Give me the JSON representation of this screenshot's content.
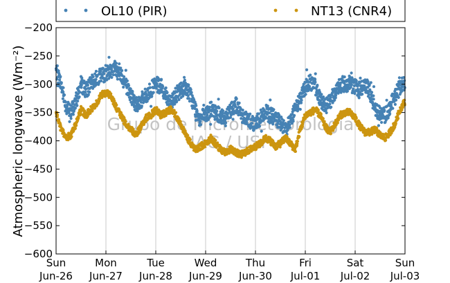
{
  "chart_data": {
    "type": "scatter",
    "ylabel": "Atmospheric longwave (Wm⁻²)",
    "ylim": [
      -600,
      -200
    ],
    "yticks": [
      -200,
      -250,
      -300,
      -350,
      -400,
      -450,
      -500,
      -550,
      -600
    ],
    "x_days": [
      "Sun\nJun-26",
      "Mon\nJun-27",
      "Tue\nJun-28",
      "Wed\nJun-29",
      "Thu\nJun-30",
      "Fri\nJul-01",
      "Sat\nJul-02",
      "Sun\nJul-03"
    ],
    "xlim_days": [
      0,
      7
    ],
    "grid": true,
    "legend_position": "top",
    "watermark": [
      "Grupo de Micrometeorologia",
      "IAG / USP"
    ],
    "series": [
      {
        "name": "OL10 (PIR)",
        "color": "#4682b4",
        "points": [
          [
            0.0,
            -275
          ],
          [
            0.1,
            -300
          ],
          [
            0.2,
            -340
          ],
          [
            0.3,
            -350
          ],
          [
            0.4,
            -330
          ],
          [
            0.5,
            -300
          ],
          [
            0.6,
            -310
          ],
          [
            0.7,
            -300
          ],
          [
            0.8,
            -290
          ],
          [
            0.9,
            -285
          ],
          [
            1.0,
            -280
          ],
          [
            1.1,
            -275
          ],
          [
            1.2,
            -270
          ],
          [
            1.3,
            -280
          ],
          [
            1.4,
            -300
          ],
          [
            1.5,
            -320
          ],
          [
            1.6,
            -335
          ],
          [
            1.7,
            -330
          ],
          [
            1.8,
            -320
          ],
          [
            1.9,
            -310
          ],
          [
            2.0,
            -300
          ],
          [
            2.1,
            -305
          ],
          [
            2.2,
            -320
          ],
          [
            2.3,
            -330
          ],
          [
            2.4,
            -320
          ],
          [
            2.5,
            -310
          ],
          [
            2.6,
            -305
          ],
          [
            2.7,
            -320
          ],
          [
            2.8,
            -345
          ],
          [
            2.9,
            -360
          ],
          [
            3.0,
            -355
          ],
          [
            3.1,
            -345
          ],
          [
            3.2,
            -350
          ],
          [
            3.3,
            -355
          ],
          [
            3.4,
            -360
          ],
          [
            3.5,
            -345
          ],
          [
            3.6,
            -335
          ],
          [
            3.7,
            -350
          ],
          [
            3.8,
            -360
          ],
          [
            3.9,
            -365
          ],
          [
            4.0,
            -370
          ],
          [
            4.1,
            -360
          ],
          [
            4.2,
            -350
          ],
          [
            4.3,
            -355
          ],
          [
            4.4,
            -360
          ],
          [
            4.5,
            -370
          ],
          [
            4.6,
            -380
          ],
          [
            4.7,
            -365
          ],
          [
            4.8,
            -345
          ],
          [
            4.9,
            -325
          ],
          [
            5.0,
            -305
          ],
          [
            5.1,
            -295
          ],
          [
            5.2,
            -305
          ],
          [
            5.3,
            -325
          ],
          [
            5.4,
            -340
          ],
          [
            5.5,
            -330
          ],
          [
            5.6,
            -315
          ],
          [
            5.7,
            -300
          ],
          [
            5.8,
            -300
          ],
          [
            5.9,
            -300
          ],
          [
            6.0,
            -305
          ],
          [
            6.1,
            -310
          ],
          [
            6.2,
            -300
          ],
          [
            6.3,
            -315
          ],
          [
            6.4,
            -340
          ],
          [
            6.5,
            -355
          ],
          [
            6.6,
            -355
          ],
          [
            6.7,
            -340
          ],
          [
            6.8,
            -320
          ],
          [
            6.9,
            -305
          ],
          [
            7.0,
            -295
          ]
        ]
      },
      {
        "name": "NT13 (CNR4)",
        "color": "#cc9510",
        "points": [
          [
            0.0,
            -350
          ],
          [
            0.1,
            -380
          ],
          [
            0.2,
            -395
          ],
          [
            0.3,
            -390
          ],
          [
            0.4,
            -370
          ],
          [
            0.5,
            -345
          ],
          [
            0.6,
            -355
          ],
          [
            0.7,
            -345
          ],
          [
            0.8,
            -335
          ],
          [
            0.9,
            -320
          ],
          [
            1.0,
            -315
          ],
          [
            1.1,
            -320
          ],
          [
            1.2,
            -340
          ],
          [
            1.3,
            -355
          ],
          [
            1.4,
            -370
          ],
          [
            1.5,
            -380
          ],
          [
            1.6,
            -390
          ],
          [
            1.7,
            -375
          ],
          [
            1.8,
            -360
          ],
          [
            1.9,
            -355
          ],
          [
            2.0,
            -345
          ],
          [
            2.1,
            -355
          ],
          [
            2.2,
            -350
          ],
          [
            2.3,
            -345
          ],
          [
            2.4,
            -355
          ],
          [
            2.5,
            -370
          ],
          [
            2.6,
            -390
          ],
          [
            2.7,
            -405
          ],
          [
            2.8,
            -415
          ],
          [
            2.9,
            -410
          ],
          [
            3.0,
            -405
          ],
          [
            3.1,
            -395
          ],
          [
            3.2,
            -405
          ],
          [
            3.3,
            -415
          ],
          [
            3.4,
            -420
          ],
          [
            3.5,
            -415
          ],
          [
            3.6,
            -420
          ],
          [
            3.7,
            -425
          ],
          [
            3.8,
            -420
          ],
          [
            3.9,
            -415
          ],
          [
            4.0,
            -410
          ],
          [
            4.1,
            -405
          ],
          [
            4.2,
            -395
          ],
          [
            4.3,
            -400
          ],
          [
            4.4,
            -410
          ],
          [
            4.5,
            -405
          ],
          [
            4.6,
            -395
          ],
          [
            4.7,
            -405
          ],
          [
            4.8,
            -415
          ],
          [
            4.9,
            -380
          ],
          [
            5.0,
            -355
          ],
          [
            5.1,
            -350
          ],
          [
            5.2,
            -345
          ],
          [
            5.3,
            -355
          ],
          [
            5.4,
            -375
          ],
          [
            5.5,
            -385
          ],
          [
            5.6,
            -370
          ],
          [
            5.7,
            -355
          ],
          [
            5.8,
            -350
          ],
          [
            5.9,
            -350
          ],
          [
            6.0,
            -360
          ],
          [
            6.1,
            -375
          ],
          [
            6.2,
            -385
          ],
          [
            6.3,
            -385
          ],
          [
            6.4,
            -380
          ],
          [
            6.5,
            -390
          ],
          [
            6.6,
            -395
          ],
          [
            6.7,
            -385
          ],
          [
            6.8,
            -370
          ],
          [
            6.9,
            -345
          ],
          [
            7.0,
            -330
          ]
        ]
      }
    ]
  }
}
